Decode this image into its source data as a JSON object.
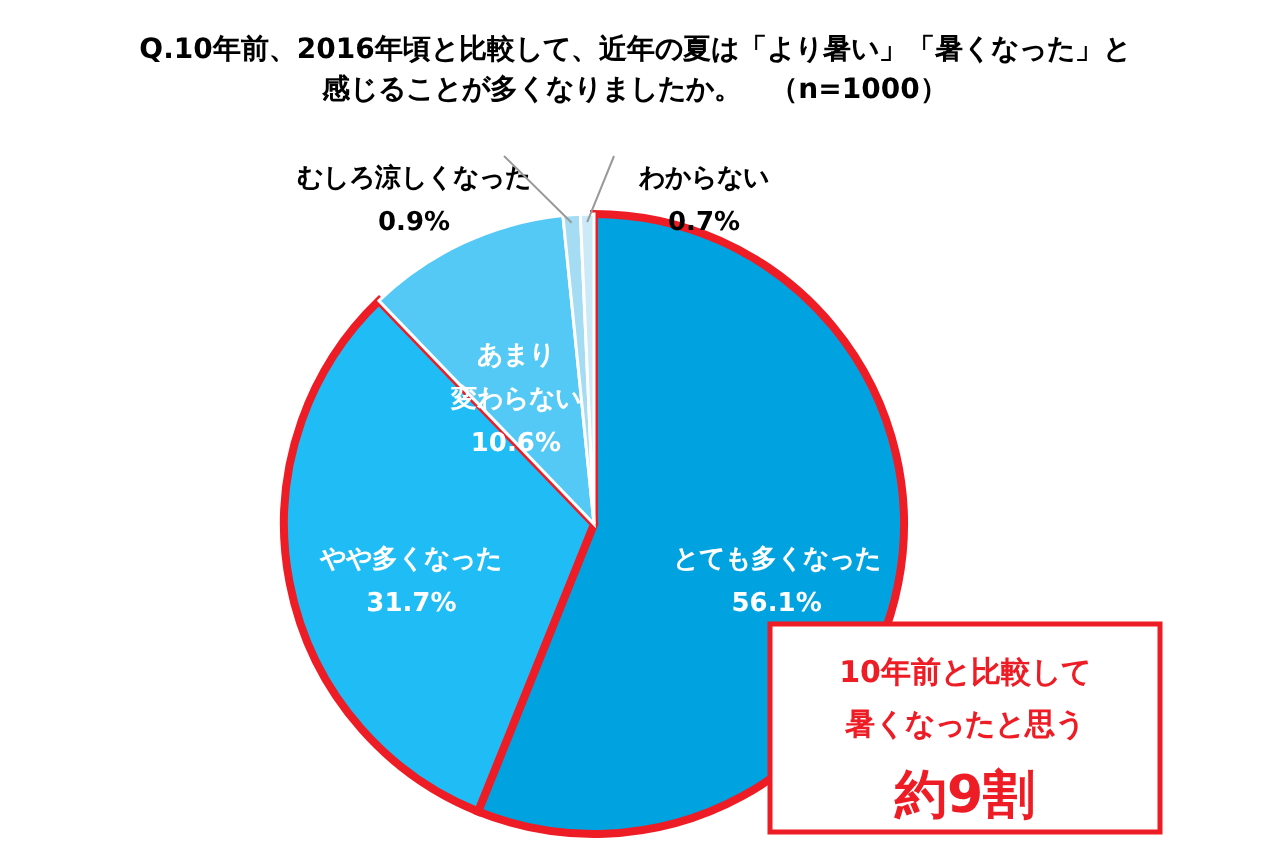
{
  "chart_data": {
    "type": "pie",
    "title": [
      "Q.10年前、2016年頃と比較して、近年の夏は「より暑い」「暑くなった」と",
      "感じることが多くなりましたか。　（n=1000）"
    ],
    "categories": [
      "とても多くなった",
      "やや多くなった",
      "あまり変わらない",
      "むしろ涼しくなった",
      "わからない"
    ],
    "values": [
      56.1,
      31.7,
      10.6,
      0.9,
      0.7
    ],
    "colors": [
      "#00a3e0",
      "#1fbcf5",
      "#55c9f5",
      "#a3dcf3",
      "#cbe9f6"
    ],
    "value_labels": [
      "56.1%",
      "31.7%",
      "10.6%",
      "0.9%",
      "0.7%"
    ],
    "annotations": [
      "10年前と比較して",
      "暑くなったと思う",
      "約9割"
    ]
  }
}
